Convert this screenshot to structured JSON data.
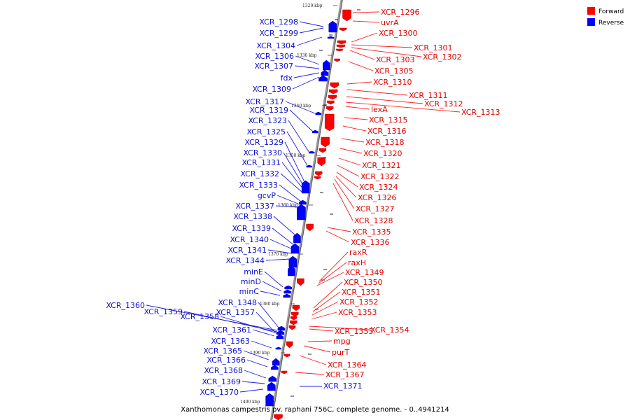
{
  "caption": "Xanthomonas campestris pv. raphani 756C, complete genome. - 0..4941214",
  "legend": [
    {
      "label": "Forward",
      "color": "#ff0000"
    },
    {
      "label": "Reverse",
      "color": "#0000ff"
    }
  ],
  "colors": {
    "forward": "#ff0000",
    "reverse": "#0000ff",
    "forward_label": "#e00000",
    "reverse_label": "#1010d0",
    "backbone": "#999999",
    "forward_leader": "#ff2020",
    "reverse_leader": "#2020e0"
  },
  "ticks": [
    "1320 kbp",
    "1330 kbp",
    "1340 kbp",
    "1350 kbp",
    "1360 kbp",
    "1370 kbp",
    "1380 kbp",
    "1390 kbp",
    "1400 kbp"
  ],
  "forward_labels": [
    "XCR_1296",
    "uvrA",
    "XCR_1300",
    "XCR_1301",
    "XCR_1302",
    "XCR_1303",
    "XCR_1305",
    "XCR_1310",
    "XCR_1311",
    "XCR_1312",
    "XCR_1313",
    "lexA",
    "XCR_1315",
    "XCR_1316",
    "XCR_1318",
    "XCR_1320",
    "XCR_1321",
    "XCR_1322",
    "XCR_1324",
    "XCR_1326",
    "XCR_1327",
    "XCR_1328",
    "XCR_1335",
    "XCR_1336",
    "raxR",
    "raxH",
    "XCR_1349",
    "XCR_1350",
    "XCR_1351",
    "XCR_1352",
    "XCR_1353",
    "XCR_1354",
    "XCR_1355",
    "mpg",
    "purT",
    "XCR_1364",
    "XCR_1367"
  ],
  "reverse_labels": [
    "XCR_1298",
    "XCR_1299",
    "XCR_1304",
    "XCR_1306",
    "XCR_1307",
    "fdx",
    "XCR_1309",
    "XCR_1317",
    "XCR_1319",
    "XCR_1323",
    "XCR_1325",
    "XCR_1329",
    "XCR_1330",
    "XCR_1331",
    "XCR_1332",
    "XCR_1333",
    "gcvP",
    "XCR_1337",
    "XCR_1338",
    "XCR_1339",
    "XCR_1340",
    "XCR_1341",
    "XCR_1344",
    "minE",
    "minD",
    "minC",
    "XCR_1348",
    "XCR_1360",
    "XCR_1359",
    "XCR_1358",
    "XCR_1357",
    "XCR_1361",
    "XCR_1363",
    "XCR_1365",
    "XCR_1366",
    "XCR_1368",
    "XCR_1369",
    "XCR_1370",
    "XCR_1371"
  ]
}
